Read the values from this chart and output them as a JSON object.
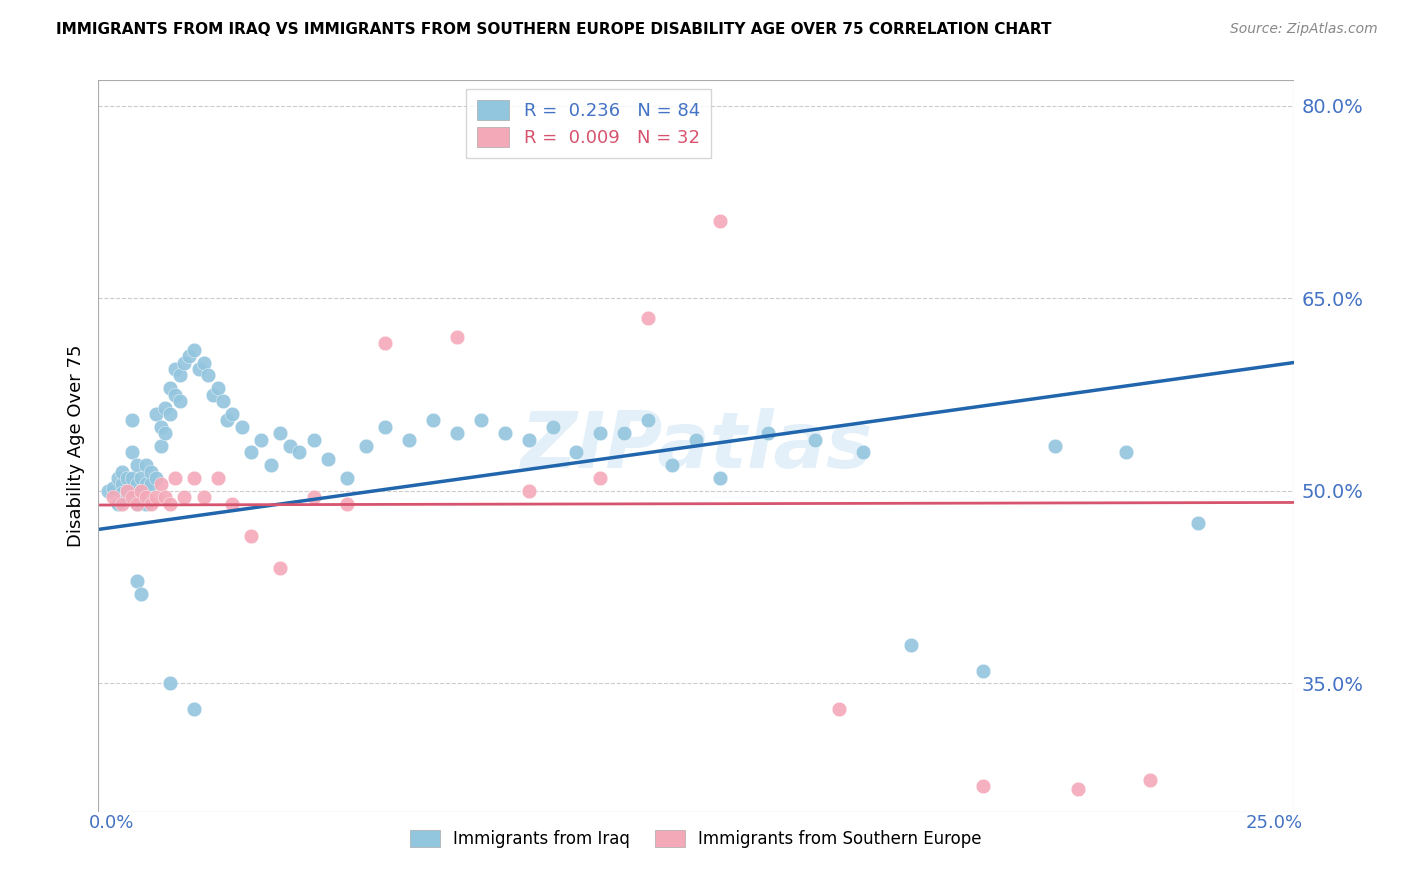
{
  "title": "IMMIGRANTS FROM IRAQ VS IMMIGRANTS FROM SOUTHERN EUROPE DISABILITY AGE OVER 75 CORRELATION CHART",
  "source": "Source: ZipAtlas.com",
  "ylabel": "Disability Age Over 75",
  "iraq_color": "#92c5de",
  "seuro_color": "#f4a9b8",
  "iraq_line_color": "#2166ac",
  "seuro_line_color": "#d6546e",
  "watermark": "ZIPatlas",
  "iraq_R": 0.236,
  "iraq_N": 84,
  "seuro_R": 0.009,
  "seuro_N": 32,
  "xlim": [
    0.0,
    0.25
  ],
  "ylim": [
    0.25,
    0.82
  ],
  "ytick_vals": [
    0.8,
    0.65,
    0.5,
    0.35
  ],
  "ytick_labels": [
    "80.0%",
    "65.0%",
    "50.0%",
    "35.0%"
  ],
  "iraq_x": [
    0.002,
    0.003,
    0.004,
    0.004,
    0.005,
    0.005,
    0.005,
    0.006,
    0.006,
    0.006,
    0.007,
    0.007,
    0.007,
    0.008,
    0.008,
    0.008,
    0.009,
    0.009,
    0.01,
    0.01,
    0.01,
    0.011,
    0.011,
    0.012,
    0.012,
    0.013,
    0.013,
    0.014,
    0.014,
    0.015,
    0.015,
    0.016,
    0.016,
    0.017,
    0.017,
    0.018,
    0.019,
    0.02,
    0.021,
    0.022,
    0.023,
    0.024,
    0.025,
    0.026,
    0.027,
    0.028,
    0.03,
    0.032,
    0.034,
    0.036,
    0.038,
    0.04,
    0.042,
    0.045,
    0.048,
    0.052,
    0.056,
    0.06,
    0.065,
    0.07,
    0.075,
    0.08,
    0.085,
    0.09,
    0.095,
    0.1,
    0.105,
    0.11,
    0.115,
    0.12,
    0.125,
    0.13,
    0.14,
    0.15,
    0.16,
    0.17,
    0.185,
    0.2,
    0.215,
    0.23,
    0.008,
    0.009,
    0.015,
    0.02
  ],
  "iraq_y": [
    0.5,
    0.502,
    0.51,
    0.49,
    0.505,
    0.498,
    0.515,
    0.51,
    0.5,
    0.495,
    0.53,
    0.555,
    0.51,
    0.505,
    0.49,
    0.52,
    0.51,
    0.5,
    0.505,
    0.49,
    0.52,
    0.515,
    0.505,
    0.51,
    0.56,
    0.55,
    0.535,
    0.565,
    0.545,
    0.58,
    0.56,
    0.595,
    0.575,
    0.59,
    0.57,
    0.6,
    0.605,
    0.61,
    0.595,
    0.6,
    0.59,
    0.575,
    0.58,
    0.57,
    0.555,
    0.56,
    0.55,
    0.53,
    0.54,
    0.52,
    0.545,
    0.535,
    0.53,
    0.54,
    0.525,
    0.51,
    0.535,
    0.55,
    0.54,
    0.555,
    0.545,
    0.555,
    0.545,
    0.54,
    0.55,
    0.53,
    0.545,
    0.545,
    0.555,
    0.52,
    0.54,
    0.51,
    0.545,
    0.54,
    0.53,
    0.38,
    0.36,
    0.535,
    0.53,
    0.475,
    0.43,
    0.42,
    0.35,
    0.33
  ],
  "seuro_x": [
    0.003,
    0.005,
    0.006,
    0.007,
    0.008,
    0.009,
    0.01,
    0.011,
    0.012,
    0.013,
    0.014,
    0.015,
    0.016,
    0.018,
    0.02,
    0.022,
    0.025,
    0.028,
    0.032,
    0.038,
    0.045,
    0.052,
    0.06,
    0.075,
    0.09,
    0.105,
    0.115,
    0.13,
    0.155,
    0.185,
    0.205,
    0.22
  ],
  "seuro_y": [
    0.495,
    0.49,
    0.5,
    0.495,
    0.49,
    0.5,
    0.495,
    0.49,
    0.495,
    0.505,
    0.495,
    0.49,
    0.51,
    0.495,
    0.51,
    0.495,
    0.51,
    0.49,
    0.465,
    0.44,
    0.495,
    0.49,
    0.615,
    0.62,
    0.5,
    0.51,
    0.635,
    0.71,
    0.33,
    0.27,
    0.268,
    0.275
  ]
}
